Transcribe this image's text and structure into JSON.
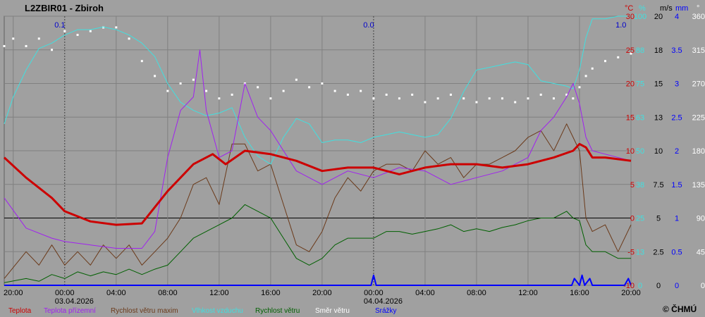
{
  "title": "L2ZBIR01 - Zbiroh",
  "copyright": "© ČHMÚ",
  "colors": {
    "background": "#a0a0a0",
    "grid": "#808080",
    "Teplota": "#cc0000",
    "Teplota přízemní": "#a020f0",
    "Rychlost větru maxim": "#6b3a1a",
    "Vlhkost vzduchu": "#40e0e0",
    "Rychlost větru": "#006000",
    "Směr větru": "#ffffff",
    "Srážky": "#0000ff"
  },
  "chart_data": {
    "type": "line",
    "x_ticks": [
      "20:00",
      "00:00",
      "04:00",
      "08:00",
      "12:00",
      "16:00",
      "20:00",
      "00:00",
      "04:00",
      "08:00",
      "12:00",
      "16:00",
      "20:00"
    ],
    "date_labels": [
      "03.04.2026",
      "04.04.2026"
    ],
    "precip_totals": [
      "0.1",
      "0.0",
      "1.0"
    ],
    "axes": {
      "temperature": {
        "unit": "°C",
        "ticks": [
          "30",
          "25",
          "20",
          "15",
          "10",
          "5",
          "0",
          "-5",
          "-10"
        ],
        "color": "#cc0000"
      },
      "humidity": {
        "unit": "%",
        "ticks": [
          "100",
          "88",
          "75",
          "63",
          "50",
          "38",
          "25",
          "13",
          "0"
        ],
        "color": "#40e0e0"
      },
      "wind": {
        "unit": "m/s",
        "ticks": [
          "20",
          "18",
          "15",
          "13",
          "10",
          "7.5",
          "5",
          "2.5",
          "0"
        ],
        "color": "#000000"
      },
      "precip": {
        "unit": "mm",
        "ticks": [
          "4",
          "3.5",
          "3",
          "2.5",
          "2",
          "1.5",
          "1",
          "0.5",
          "0"
        ],
        "color": "#0000ff"
      },
      "direction": {
        "unit": "°",
        "ticks": [
          "360",
          "315",
          "270",
          "225",
          "180",
          "135",
          "90",
          "45",
          "0"
        ],
        "color": "#ffffff"
      }
    },
    "time_axis": {
      "start_hours": -4.7,
      "end_hours": 44
    },
    "series": [
      {
        "name": "Teplota",
        "axis": "temperature",
        "t": [
          -4.7,
          -3,
          -1,
          0,
          2,
          4,
          6,
          8,
          10,
          11.5,
          12.5,
          14,
          16,
          18,
          20,
          22,
          24,
          26,
          28,
          30,
          32,
          34,
          36,
          38,
          39.5,
          40,
          40.5,
          41,
          42,
          44
        ],
        "values": [
          9,
          6,
          3,
          1,
          -0.5,
          -1,
          -0.8,
          4,
          8,
          9.5,
          8,
          10,
          9.5,
          8.5,
          7,
          7.5,
          7.5,
          6.5,
          7.5,
          8,
          8,
          7.5,
          8,
          9,
          10,
          11,
          10.5,
          9,
          9,
          8.5
        ]
      },
      {
        "name": "Teplota přízemní",
        "axis": "temperature",
        "t": [
          -4.7,
          -3,
          -1,
          0,
          2,
          4,
          6,
          7,
          8,
          9,
          10,
          10.5,
          11,
          12,
          13,
          14,
          15,
          16,
          18,
          20,
          22,
          24,
          26,
          28,
          30,
          32,
          34,
          36,
          37,
          38,
          39,
          39.5,
          40,
          40.5,
          41,
          42,
          44
        ],
        "values": [
          3,
          -1.5,
          -3,
          -3.5,
          -4,
          -4.5,
          -4.5,
          -2,
          9,
          16,
          18,
          25,
          16,
          9,
          10,
          20,
          15,
          13,
          7,
          5,
          7,
          6,
          7.5,
          7,
          5,
          6,
          7,
          9,
          13,
          15,
          18,
          20,
          17,
          12,
          10,
          9.5,
          8.5
        ]
      },
      {
        "name": "Rychlost větru maxim",
        "axis": "wind",
        "t": [
          -4.7,
          -3,
          -2,
          -1,
          0,
          1,
          2,
          3,
          4,
          5,
          6,
          7,
          8,
          9,
          10,
          11,
          12,
          13,
          14,
          15,
          16,
          17,
          18,
          19,
          20,
          21,
          22,
          23,
          24,
          25,
          26,
          27,
          28,
          29,
          30,
          31,
          32,
          33,
          34,
          35,
          36,
          37,
          38,
          39,
          39.5,
          40,
          40.5,
          41,
          42,
          43,
          44
        ],
        "values": [
          0.5,
          2.5,
          1.5,
          3,
          1.5,
          2.5,
          1.5,
          3,
          2,
          3,
          1.5,
          2.5,
          3.5,
          5,
          7.5,
          8,
          6,
          10.5,
          10.5,
          8.5,
          9,
          6,
          3,
          2.5,
          4,
          6.5,
          8,
          7,
          8.5,
          9,
          9,
          8.5,
          10,
          9,
          9.5,
          8,
          9,
          9,
          9.5,
          10,
          11,
          11.5,
          10,
          12,
          11,
          10,
          5,
          4,
          4.5,
          2.5,
          4.5
        ]
      },
      {
        "name": "Vlhkost vzduchu",
        "axis": "humidity",
        "t": [
          -4.7,
          -4,
          -3,
          -2,
          -1,
          0,
          1,
          2,
          3,
          4,
          5,
          6,
          7,
          8,
          9,
          10,
          11,
          12,
          13,
          14,
          15,
          16,
          17,
          18,
          19,
          20,
          21,
          22,
          23,
          24,
          25,
          26,
          27,
          28,
          29,
          30,
          31,
          32,
          33,
          34,
          35,
          36,
          37,
          38,
          39,
          39.5,
          40,
          40.5,
          41,
          42,
          43,
          44
        ],
        "values": [
          60,
          70,
          80,
          88,
          90,
          93,
          95,
          95,
          96,
          95,
          93,
          90,
          85,
          75,
          68,
          65,
          63,
          64,
          66,
          55,
          48,
          45,
          55,
          62,
          60,
          53,
          54,
          54,
          53,
          55,
          56,
          57,
          56,
          55,
          56,
          62,
          72,
          80,
          81,
          82,
          83,
          82,
          76,
          75,
          74,
          73,
          80,
          92,
          99,
          99,
          100,
          100
        ]
      },
      {
        "name": "Rychlost větru",
        "axis": "wind",
        "t": [
          -4.7,
          -3,
          -2,
          -1,
          0,
          1,
          2,
          3,
          4,
          5,
          6,
          7,
          8,
          9,
          10,
          11,
          12,
          13,
          14,
          15,
          16,
          17,
          18,
          19,
          20,
          21,
          22,
          23,
          24,
          25,
          26,
          27,
          28,
          29,
          30,
          31,
          32,
          33,
          34,
          35,
          36,
          37,
          38,
          39,
          39.5,
          40,
          40.5,
          41,
          42,
          43,
          44
        ],
        "values": [
          0.2,
          0.5,
          0.3,
          0.8,
          0.5,
          1,
          0.7,
          1,
          0.8,
          1.2,
          0.8,
          1.2,
          1.5,
          2.5,
          3.5,
          4,
          4.5,
          5,
          6,
          5.5,
          5,
          3.5,
          2,
          1.5,
          2,
          3,
          3.5,
          3.5,
          3.5,
          4,
          4,
          3.8,
          4,
          4.2,
          4.5,
          4,
          4.2,
          4,
          4.3,
          4.5,
          4.8,
          5,
          5,
          5.5,
          5,
          4.8,
          3,
          2.5,
          2.5,
          2,
          2
        ]
      },
      {
        "name": "Směr větru",
        "axis": "direction",
        "t": [
          -4.7,
          -4,
          -3,
          -2,
          -1,
          0,
          1,
          2,
          3,
          4,
          5,
          6,
          7,
          8,
          9,
          10,
          11,
          12,
          13,
          14,
          15,
          16,
          17,
          18,
          19,
          20,
          21,
          22,
          23,
          24,
          25,
          26,
          27,
          28,
          29,
          30,
          31,
          32,
          33,
          34,
          35,
          36,
          37,
          38,
          39,
          39.5,
          40,
          40.5,
          41,
          42,
          43,
          44
        ],
        "values": [
          320,
          330,
          320,
          330,
          315,
          340,
          335,
          340,
          345,
          345,
          330,
          300,
          280,
          260,
          270,
          275,
          260,
          250,
          255,
          270,
          265,
          250,
          260,
          275,
          265,
          270,
          260,
          255,
          260,
          250,
          255,
          250,
          255,
          245,
          250,
          255,
          250,
          245,
          250,
          250,
          245,
          250,
          255,
          250,
          255,
          250,
          265,
          280,
          290,
          300,
          305,
          310
        ]
      },
      {
        "name": "Srážky",
        "axis": "precip",
        "t": [
          -4.7,
          23.8,
          24,
          24.2,
          37,
          37.6,
          37.8,
          38,
          39,
          39.4,
          39.6,
          40,
          40.2,
          40.4,
          40.8,
          41,
          41.4,
          43.5,
          43.8,
          44
        ],
        "values": [
          0,
          0,
          0.15,
          0,
          0,
          0,
          0,
          0,
          0,
          0,
          0.1,
          0,
          0.15,
          0,
          0.1,
          0,
          0,
          0,
          0.1,
          0
        ]
      }
    ]
  }
}
